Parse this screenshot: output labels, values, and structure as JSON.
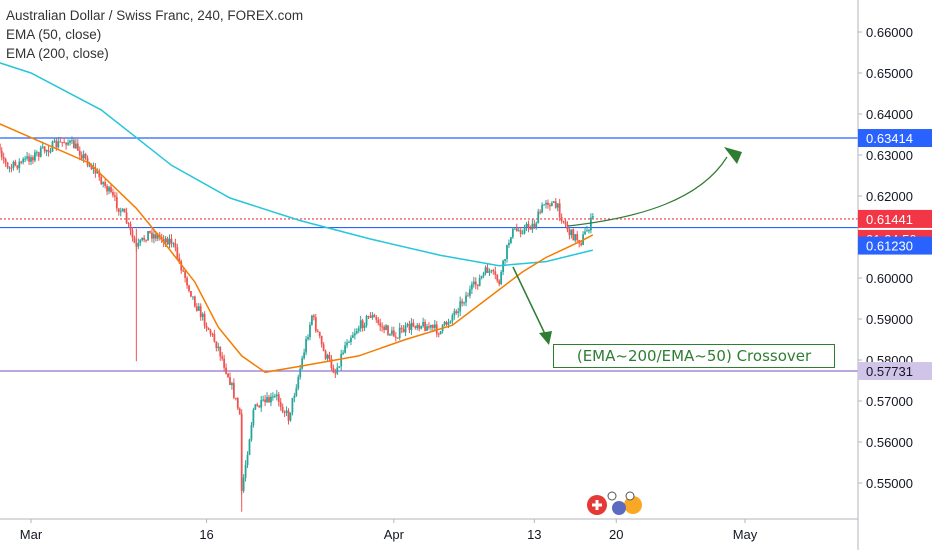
{
  "legend": {
    "title": "Australian Dollar / Swiss Franc, 240, FOREX.com",
    "ema_fast": "EMA (50, close)",
    "ema_slow": "EMA (200, close)"
  },
  "annotation": {
    "label": "(EMA~200/EMA~50) Crossover"
  },
  "price_badges": {
    "resistance": "0.63414",
    "last": "0.61441",
    "countdown": "01:24:50",
    "support": "0.61230",
    "bottom_line": "0.57731"
  },
  "colors": {
    "up": "#26a69a",
    "down": "#ef5350",
    "ema50": "#f57c00",
    "ema200": "#26c6da",
    "hline": "#2962ff",
    "purple_line": "#9575cd",
    "arrow": "#2e7d32",
    "last_price": "#f23645",
    "badge_blue": "#2962ff"
  },
  "chart_data": {
    "type": "candlestick",
    "title": "Australian Dollar / Swiss Franc, 240, FOREX.com",
    "timeframe": "240",
    "x_ticks": [
      "Mar",
      "16",
      "Apr",
      "13",
      "20",
      "May"
    ],
    "y_ticks": [
      "0.66000",
      "0.65000",
      "0.64000",
      "0.63000",
      "0.62000",
      "0.61000",
      "0.60000",
      "0.59000",
      "0.58000",
      "0.57000",
      "0.56000",
      "0.55000"
    ],
    "ylim": [
      0.542,
      0.665
    ],
    "grid": false,
    "price_path": [
      [
        "2020-02-26",
        0.6395
      ],
      [
        "2020-02-27",
        0.6345
      ],
      [
        "2020-02-28",
        0.6265
      ],
      [
        "2020-03-02",
        0.631
      ],
      [
        "2020-03-04",
        0.6335
      ],
      [
        "2020-03-05",
        0.6315
      ],
      [
        "2020-03-07",
        0.624
      ],
      [
        "2020-03-09",
        0.615
      ],
      [
        "2020-03-10",
        0.607
      ],
      [
        "2020-03-11",
        0.611
      ],
      [
        "2020-03-13",
        0.609
      ],
      [
        "2020-03-15",
        0.594
      ],
      [
        "2020-03-17",
        0.583
      ],
      [
        "2020-03-18",
        0.575
      ],
      [
        "2020-03-19",
        0.565
      ],
      [
        "2020-03-19",
        0.548
      ],
      [
        "2020-03-20",
        0.568
      ],
      [
        "2020-03-22",
        0.571
      ],
      [
        "2020-03-23",
        0.566
      ],
      [
        "2020-03-24",
        0.578
      ],
      [
        "2020-03-25",
        0.591
      ],
      [
        "2020-03-26",
        0.582
      ],
      [
        "2020-03-27",
        0.577
      ],
      [
        "2020-03-28",
        0.585
      ],
      [
        "2020-03-30",
        0.591
      ],
      [
        "2020-03-31",
        0.588
      ],
      [
        "2020-04-01",
        0.586
      ],
      [
        "2020-04-03",
        0.589
      ],
      [
        "2020-04-05",
        0.587
      ],
      [
        "2020-04-07",
        0.595
      ],
      [
        "2020-04-09",
        0.602
      ],
      [
        "2020-04-10",
        0.599
      ],
      [
        "2020-04-11",
        0.611
      ],
      [
        "2020-04-13",
        0.613
      ],
      [
        "2020-04-14",
        0.619
      ],
      [
        "2020-04-15",
        0.617
      ],
      [
        "2020-04-16",
        0.611
      ],
      [
        "2020-04-17",
        0.609
      ],
      [
        "2020-04-18",
        0.6145
      ]
    ],
    "ema50": [
      [
        "2020-02-23",
        0.6485
      ],
      [
        "2020-02-27",
        0.638
      ],
      [
        "2020-03-02",
        0.633
      ],
      [
        "2020-03-06",
        0.628
      ],
      [
        "2020-03-10",
        0.617
      ],
      [
        "2020-03-12",
        0.61
      ],
      [
        "2020-03-15",
        0.599
      ],
      [
        "2020-03-17",
        0.588
      ],
      [
        "2020-03-19",
        0.581
      ],
      [
        "2020-03-21",
        0.577
      ],
      [
        "2020-03-24",
        0.5785
      ],
      [
        "2020-03-29",
        0.581
      ],
      [
        "2020-04-02",
        0.585
      ],
      [
        "2020-04-06",
        0.5885
      ],
      [
        "2020-04-09",
        0.595
      ],
      [
        "2020-04-12",
        0.6015
      ],
      [
        "2020-04-14",
        0.605
      ],
      [
        "2020-04-17",
        0.609
      ],
      [
        "2020-04-18",
        0.6105
      ]
    ],
    "ema200": [
      [
        "2020-02-23",
        0.6565
      ],
      [
        "2020-03-01",
        0.65
      ],
      [
        "2020-03-07",
        0.641
      ],
      [
        "2020-03-13",
        0.6275
      ],
      [
        "2020-03-18",
        0.6195
      ],
      [
        "2020-03-24",
        0.614
      ],
      [
        "2020-03-30",
        0.6095
      ],
      [
        "2020-04-05",
        0.6055
      ],
      [
        "2020-04-10",
        0.603
      ],
      [
        "2020-04-14",
        0.604
      ],
      [
        "2020-04-18",
        0.6068
      ]
    ],
    "horizontal_lines": [
      {
        "price": 0.63414,
        "style": "solid",
        "color": "#2962ff"
      },
      {
        "price": 0.61441,
        "style": "dotted",
        "color": "#f23645"
      },
      {
        "price": 0.6123,
        "style": "solid",
        "color": "#2962ff"
      },
      {
        "price": 0.57731,
        "style": "solid",
        "color": "#9575cd"
      }
    ],
    "annotation_text": "(EMA~200/EMA~50) Crossover"
  }
}
